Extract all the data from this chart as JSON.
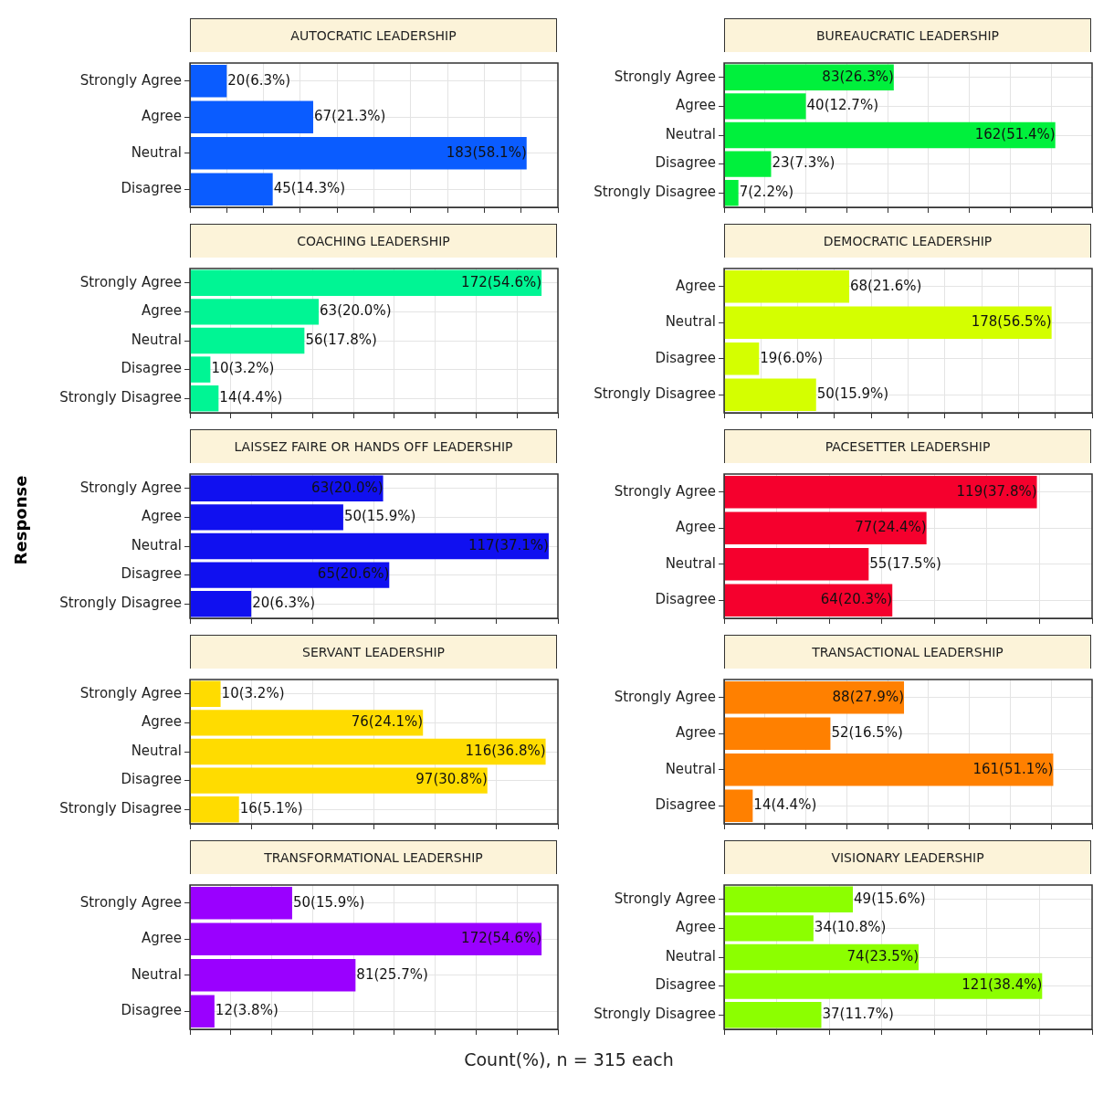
{
  "chart_data": [
    {
      "type": "bar",
      "orientation": "horizontal",
      "title": "AUTOCRATIC LEADERSHIP",
      "categories": [
        "Strongly Agree",
        "Agree",
        "Neutral",
        "Disagree"
      ],
      "values": [
        20,
        67,
        183,
        45
      ],
      "value_labels": [
        "20(6.3%)",
        "67(21.3%)",
        "183(58.1%)",
        "45(14.3%)"
      ],
      "color": "#0a5cff",
      "grid": true,
      "tick_labels": "y"
    },
    {
      "type": "bar",
      "orientation": "horizontal",
      "title": "BUREAUCRATIC LEADERSHIP",
      "categories": [
        "Strongly Agree",
        "Agree",
        "Neutral",
        "Disagree",
        "Strongly Disagree"
      ],
      "values": [
        83,
        40,
        162,
        23,
        7
      ],
      "value_labels": [
        "83(26.3%)",
        "40(12.7%)",
        "162(51.4%)",
        "23(7.3%)",
        "7(2.2%)"
      ],
      "color": "#00f03c",
      "grid": true,
      "tick_labels": "y"
    },
    {
      "type": "bar",
      "orientation": "horizontal",
      "title": "COACHING LEADERSHIP",
      "categories": [
        "Strongly Agree",
        "Agree",
        "Neutral",
        "Disagree",
        "Strongly Disagree"
      ],
      "values": [
        172,
        63,
        56,
        10,
        14
      ],
      "value_labels": [
        "172(54.6%)",
        "63(20.0%)",
        "56(17.8%)",
        "10(3.2%)",
        "14(4.4%)"
      ],
      "color": "#00f594",
      "grid": true,
      "tick_labels": "y"
    },
    {
      "type": "bar",
      "orientation": "horizontal",
      "title": "DEMOCRATIC LEADERSHIP",
      "categories": [
        "Agree",
        "Neutral",
        "Disagree",
        "Strongly Disagree"
      ],
      "values": [
        68,
        178,
        19,
        50
      ],
      "value_labels": [
        "68(21.6%)",
        "178(56.5%)",
        "19(6.0%)",
        "50(15.9%)"
      ],
      "color": "#d4ff00",
      "grid": true,
      "tick_labels": "y"
    },
    {
      "type": "bar",
      "orientation": "horizontal",
      "title": "LAISSEZ FAIRE OR HANDS OFF LEADERSHIP",
      "ylabel": "Response",
      "categories": [
        "Strongly Agree",
        "Agree",
        "Neutral",
        "Disagree",
        "Strongly Disagree"
      ],
      "values": [
        63,
        50,
        117,
        65,
        20
      ],
      "value_labels": [
        "63(20.0%)",
        "50(15.9%)",
        "117(37.1%)",
        "65(20.6%)",
        "20(6.3%)"
      ],
      "color": "#1010f0",
      "grid": true,
      "tick_labels": "y"
    },
    {
      "type": "bar",
      "orientation": "horizontal",
      "title": "PACESETTER LEADERSHIP",
      "categories": [
        "Strongly Agree",
        "Agree",
        "Neutral",
        "Disagree"
      ],
      "values": [
        119,
        77,
        55,
        64
      ],
      "value_labels": [
        "119(37.8%)",
        "77(24.4%)",
        "55(17.5%)",
        "64(20.3%)"
      ],
      "color": "#f5002d",
      "grid": true,
      "tick_labels": "y"
    },
    {
      "type": "bar",
      "orientation": "horizontal",
      "title": "SERVANT LEADERSHIP",
      "categories": [
        "Strongly Agree",
        "Agree",
        "Neutral",
        "Disagree",
        "Strongly Disagree"
      ],
      "values": [
        10,
        76,
        116,
        97,
        16
      ],
      "value_labels": [
        "10(3.2%)",
        "76(24.1%)",
        "116(36.8%)",
        "97(30.8%)",
        "16(5.1%)"
      ],
      "color": "#ffdc00",
      "grid": true,
      "tick_labels": "y"
    },
    {
      "type": "bar",
      "orientation": "horizontal",
      "title": "TRANSACTIONAL LEADERSHIP",
      "categories": [
        "Strongly Agree",
        "Agree",
        "Neutral",
        "Disagree"
      ],
      "values": [
        88,
        52,
        161,
        14
      ],
      "value_labels": [
        "88(27.9%)",
        "52(16.5%)",
        "161(51.1%)",
        "14(4.4%)"
      ],
      "color": "#ff8000",
      "grid": true,
      "tick_labels": "y"
    },
    {
      "type": "bar",
      "orientation": "horizontal",
      "title": "TRANSFORMATIONAL LEADERSHIP",
      "categories": [
        "Strongly Agree",
        "Agree",
        "Neutral",
        "Disagree"
      ],
      "values": [
        50,
        172,
        81,
        12
      ],
      "value_labels": [
        "50(15.9%)",
        "172(54.6%)",
        "81(25.7%)",
        "12(3.8%)"
      ],
      "color": "#9a00ff",
      "grid": true,
      "tick_labels": "y"
    },
    {
      "type": "bar",
      "orientation": "horizontal",
      "title": "VISIONARY LEADERSHIP",
      "xlabel": "Count(%), n = 315 each",
      "categories": [
        "Strongly Agree",
        "Agree",
        "Neutral",
        "Disagree",
        "Strongly Disagree"
      ],
      "values": [
        49,
        34,
        74,
        121,
        37
      ],
      "value_labels": [
        "49(15.6%)",
        "34(10.8%)",
        "74(23.5%)",
        "121(38.4%)",
        "37(11.7%)"
      ],
      "color": "#8cff00",
      "grid": true,
      "tick_labels": "y"
    }
  ]
}
